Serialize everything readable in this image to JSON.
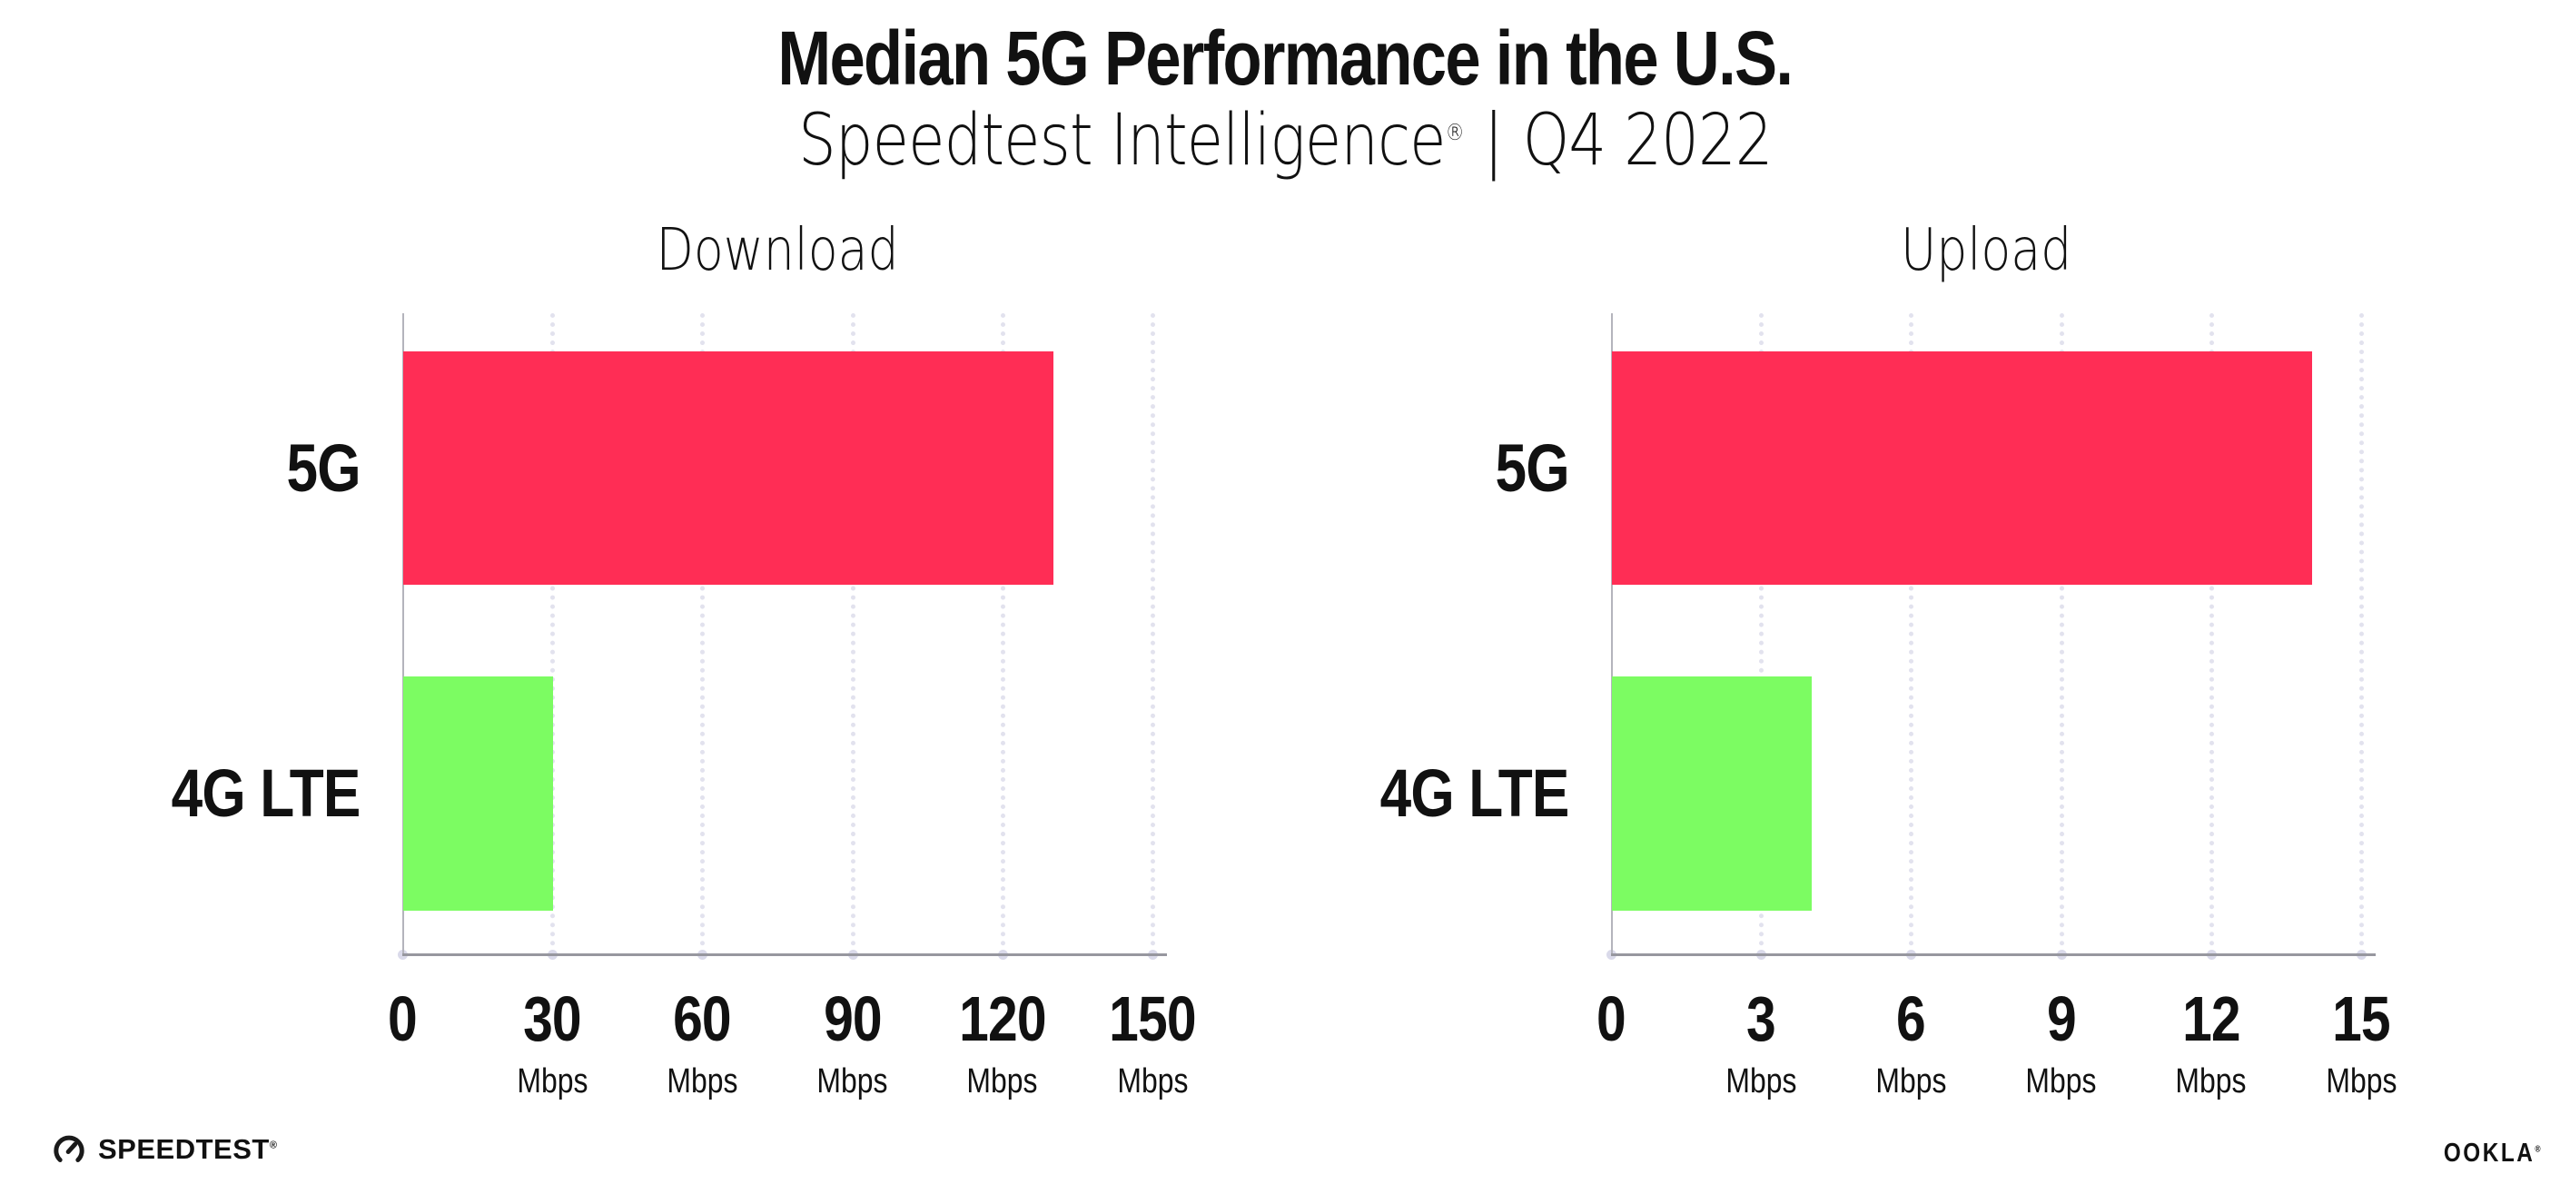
{
  "header": {
    "title": "Median 5G Performance in the U.S.",
    "subtitle_product": "Speedtest Intelligence",
    "subtitle_reg": "®",
    "subtitle_separator": "|",
    "subtitle_period": "Q4 2022"
  },
  "chart_data": [
    {
      "type": "bar",
      "orientation": "horizontal",
      "title": "Download",
      "categories": [
        "5G",
        "4G LTE"
      ],
      "values": [
        130,
        30
      ],
      "colors": [
        "#FF2D55",
        "#7CFC62"
      ],
      "unit": "Mbps",
      "xlim": [
        0,
        150
      ],
      "xticks": [
        0,
        30,
        60,
        90,
        120,
        150
      ],
      "grid": "vertical-dotted",
      "legend": "none"
    },
    {
      "type": "bar",
      "orientation": "horizontal",
      "title": "Upload",
      "categories": [
        "5G",
        "4G LTE"
      ],
      "values": [
        14,
        4
      ],
      "colors": [
        "#FF2D55",
        "#7CFC62"
      ],
      "unit": "Mbps",
      "xlim": [
        0,
        15
      ],
      "xticks": [
        0,
        3,
        6,
        9,
        12,
        15
      ],
      "grid": "vertical-dotted",
      "legend": "none"
    }
  ],
  "footer": {
    "speedtest_label": "SPEEDTEST",
    "speedtest_reg": "®",
    "speedtest_icon": "gauge-icon",
    "ookla_label": "OOKLA",
    "ookla_reg": "®"
  },
  "colors": {
    "bar_5g": "#FF2D55",
    "bar_4g_lte": "#7CFC62",
    "gridline": "#E2E2EE",
    "axis_line": "#97979F",
    "text": "#111111",
    "background": "#FFFFFF"
  }
}
